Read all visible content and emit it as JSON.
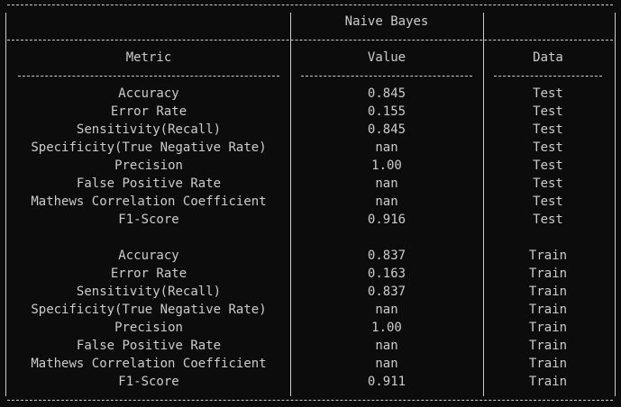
{
  "table": {
    "title": "Naive Bayes",
    "headers": {
      "metric": "Metric",
      "value": "Value",
      "data": "Data"
    },
    "rows": [
      {
        "metric": "Accuracy",
        "value": "0.845",
        "data": "Test"
      },
      {
        "metric": "Error Rate",
        "value": "0.155",
        "data": "Test"
      },
      {
        "metric": "Sensitivity(Recall)",
        "value": "0.845",
        "data": "Test"
      },
      {
        "metric": "Specificity(True Negative Rate)",
        "value": "nan",
        "data": "Test"
      },
      {
        "metric": "Precision",
        "value": "1.00",
        "data": "Test"
      },
      {
        "metric": "False Positive Rate",
        "value": "nan",
        "data": "Test"
      },
      {
        "metric": "Mathews Correlation Coefficient",
        "value": "nan",
        "data": "Test"
      },
      {
        "metric": "F1-Score",
        "value": "0.916",
        "data": "Test"
      },
      {
        "metric": "",
        "value": "",
        "data": ""
      },
      {
        "metric": "Accuracy",
        "value": "0.837",
        "data": "Train"
      },
      {
        "metric": "Error Rate",
        "value": "0.163",
        "data": "Train"
      },
      {
        "metric": "Sensitivity(Recall)",
        "value": "0.837",
        "data": "Train"
      },
      {
        "metric": "Specificity(True Negative Rate)",
        "value": "nan",
        "data": "Train"
      },
      {
        "metric": "Precision",
        "value": "1.00",
        "data": "Train"
      },
      {
        "metric": "False Positive Rate",
        "value": "nan",
        "data": "Train"
      },
      {
        "metric": "Mathews Correlation Coefficient",
        "value": "nan",
        "data": "Train"
      },
      {
        "metric": "F1-Score",
        "value": "0.911",
        "data": "Train"
      }
    ]
  },
  "colors": {
    "background": "#0c0c0c",
    "text": "#cccccc"
  }
}
